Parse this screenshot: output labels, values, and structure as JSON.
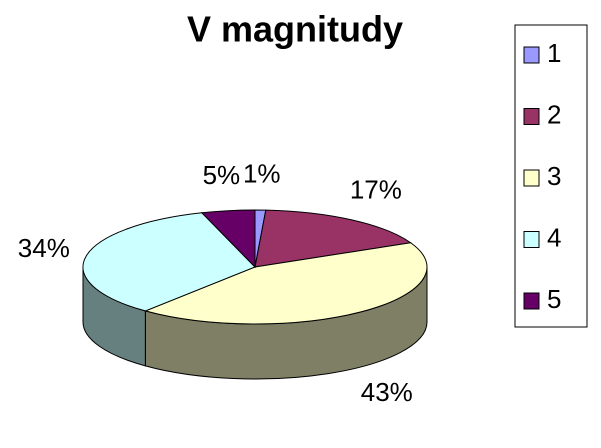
{
  "chart_data": {
    "type": "pie3d",
    "title": "V magnitudy",
    "categories": [
      "1",
      "2",
      "3",
      "4",
      "5"
    ],
    "values": [
      1,
      17,
      43,
      34,
      5
    ],
    "value_labels": [
      "1%",
      "17%",
      "43%",
      "34%",
      "5%"
    ],
    "colors": [
      "#9999ff",
      "#993366",
      "#ffffcc",
      "#ccffff",
      "#660066"
    ],
    "legend": "right"
  }
}
